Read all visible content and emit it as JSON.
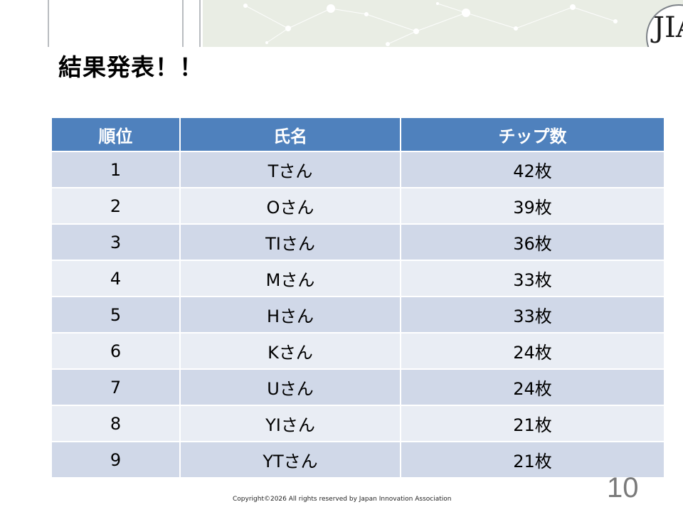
{
  "slide": {
    "title": "結果発表！！",
    "logo_text": "JIA",
    "copyright": "Copyright©2026 All rights reserved by Japan Innovation Association",
    "page_number": "10"
  },
  "table": {
    "headers": [
      "順位",
      "氏名",
      "チップ数"
    ],
    "rows": [
      [
        "1",
        "Tさん",
        "42枚"
      ],
      [
        "2",
        "Oさん",
        "39枚"
      ],
      [
        "3",
        "TIさん",
        "36枚"
      ],
      [
        "4",
        "Mさん",
        "33枚"
      ],
      [
        "5",
        "Hさん",
        "33枚"
      ],
      [
        "6",
        "Kさん",
        "24枚"
      ],
      [
        "7",
        "Uさん",
        "24枚"
      ],
      [
        "8",
        "YIさん",
        "21枚"
      ],
      [
        "9",
        "YTさん",
        "21枚"
      ]
    ]
  },
  "colors": {
    "header_fill": "#4f81bd",
    "row_band_dark": "#d0d8e8",
    "row_band_light": "#e9edf4"
  }
}
